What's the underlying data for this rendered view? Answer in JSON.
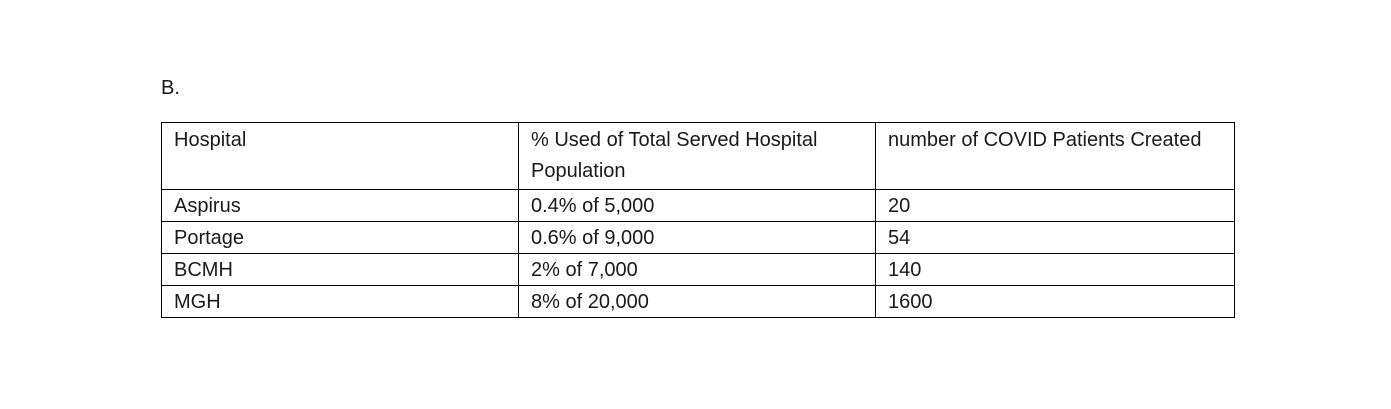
{
  "section_label": "B.",
  "table": {
    "headers": [
      "Hospital",
      "% Used of Total Served Hospital Population",
      "number of COVID Patients Created"
    ],
    "rows": [
      [
        "Aspirus",
        "0.4% of 5,000",
        "20"
      ],
      [
        "Portage",
        "0.6% of 9,000",
        "54"
      ],
      [
        "BCMH",
        "2% of 7,000",
        "140"
      ],
      [
        "MGH",
        "8% of 20,000",
        "1600"
      ]
    ]
  }
}
